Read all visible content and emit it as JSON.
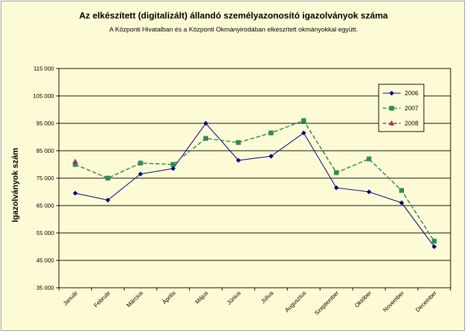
{
  "chart_data": {
    "type": "line",
    "title": "Az elkészített (digitalizált) állandó személyazonosító igazolványok száma",
    "subtitle": "A Központi Hivatalban és a Központi Okmányirodában elkészített okmányokkal együtt.",
    "xlabel": "",
    "ylabel": "Igazolványok szám",
    "categories": [
      "Január",
      "Február",
      "Március",
      "Április",
      "Május",
      "Június",
      "Július",
      "Augusztus",
      "Szeptember",
      "Október",
      "November",
      "December"
    ],
    "ylim": [
      35000,
      115000
    ],
    "yticks": [
      35000,
      45000,
      55000,
      65000,
      75000,
      85000,
      95000,
      105000,
      115000
    ],
    "ytick_labels": [
      "35 000",
      "45 000",
      "55 000",
      "65 000",
      "75 000",
      "85 000",
      "95 000",
      "105 000",
      "115 000"
    ],
    "grid": true,
    "legend_position": "top-right",
    "series": [
      {
        "name": "2006",
        "color": "#000080",
        "marker": "diamond",
        "dash": "solid",
        "values": [
          69500,
          67000,
          76500,
          78500,
          95000,
          81500,
          83000,
          91500,
          71500,
          70000,
          66000,
          50000
        ]
      },
      {
        "name": "2007",
        "color": "#2e8b57",
        "marker": "square",
        "dash": "dashed",
        "values": [
          80000,
          75000,
          80500,
          80000,
          89500,
          88000,
          91500,
          96000,
          77000,
          82000,
          70500,
          52000
        ]
      },
      {
        "name": "2008",
        "color": "#993366",
        "marker": "triangle",
        "dash": "dashed",
        "values": [
          81000,
          null,
          null,
          null,
          null,
          null,
          null,
          null,
          null,
          null,
          null,
          null
        ]
      }
    ]
  }
}
